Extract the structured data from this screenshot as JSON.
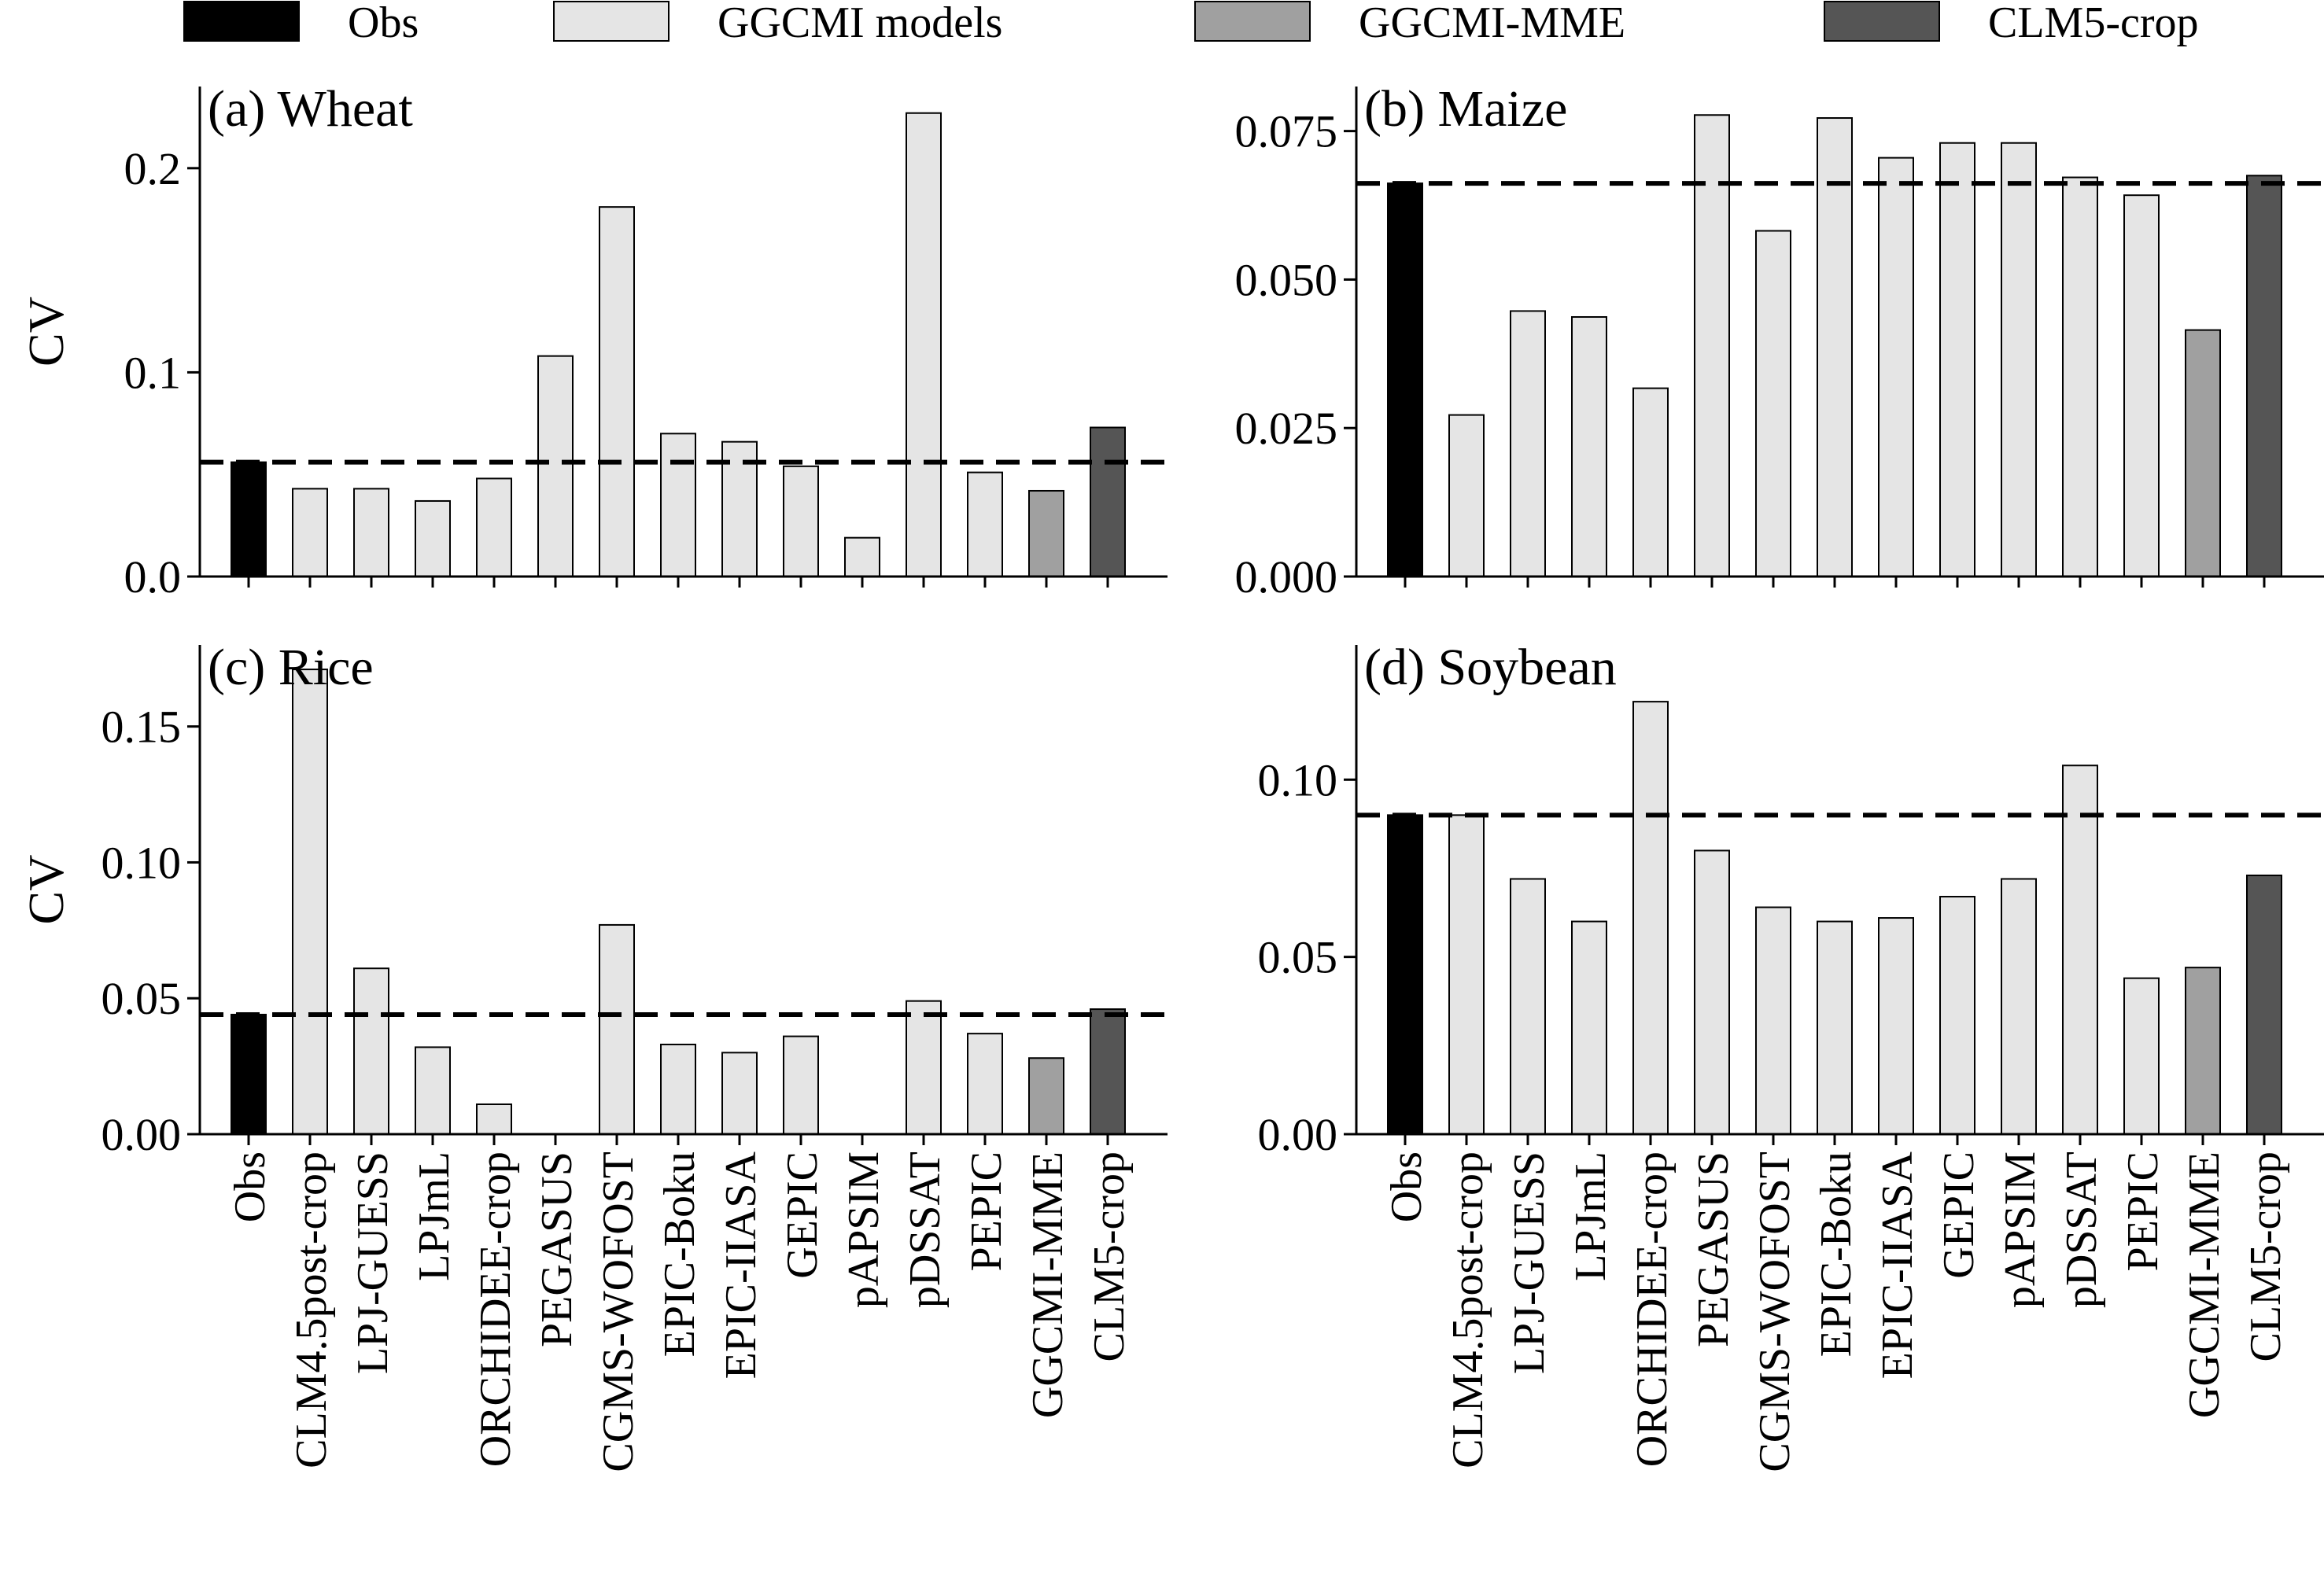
{
  "legend": [
    {
      "label": "Obs",
      "color": "#000000"
    },
    {
      "label": "GGCMI models",
      "color": "#e5e5e5"
    },
    {
      "label": "GGCMI-MME",
      "color": "#a0a0a0"
    },
    {
      "label": "CLM5-crop",
      "color": "#555555"
    }
  ],
  "chart_data": [
    {
      "type": "bar",
      "title": "(a) Wheat",
      "ylabel": "CV",
      "ylim": [
        0,
        0.24
      ],
      "yticks": [
        "0.0",
        "0.1",
        "0.2"
      ],
      "categories": [
        "Obs",
        "CLM4.5post-crop",
        "LPJ-GUESS",
        "LPJmL",
        "ORCHIDEE-crop",
        "PEGASUS",
        "CGMS-WOFOST",
        "EPIC-Boku",
        "EPIC-IIASA",
        "GEPIC",
        "pAPSIM",
        "pDSSAT",
        "PEPIC",
        "GGCMI-MME",
        "CLM5-crop"
      ],
      "values": [
        0.056,
        0.043,
        0.043,
        0.037,
        0.048,
        0.108,
        0.181,
        0.07,
        0.066,
        0.054,
        0.019,
        0.227,
        0.051,
        0.042,
        0.073
      ],
      "reference_line": 0.056,
      "show_xticklabels": false
    },
    {
      "type": "bar",
      "title": "(b) Maize",
      "ylabel": "",
      "ylim": [
        0,
        0.0825
      ],
      "yticks": [
        "0.000",
        "0.025",
        "0.050",
        "0.075"
      ],
      "categories": [
        "Obs",
        "CLM4.5post-crop",
        "LPJ-GUESS",
        "LPJmL",
        "ORCHIDEE-crop",
        "PEGASUS",
        "CGMS-WOFOST",
        "EPIC-Boku",
        "EPIC-IIASA",
        "GEPIC",
        "pAPSIM",
        "pDSSAT",
        "PEPIC",
        "GGCMI-MME",
        "CLM5-crop"
      ],
      "values": [
        0.0662,
        0.0272,
        0.0447,
        0.0437,
        0.0317,
        0.0777,
        0.0582,
        0.0772,
        0.0705,
        0.073,
        0.073,
        0.0672,
        0.0642,
        0.0415,
        0.0675
      ],
      "reference_line": 0.0662,
      "show_xticklabels": false
    },
    {
      "type": "bar",
      "title": "(c) Rice",
      "ylabel": "CV",
      "ylim": [
        0,
        0.18
      ],
      "yticks": [
        "0.00",
        "0.05",
        "0.10",
        "0.15"
      ],
      "categories": [
        "Obs",
        "CLM4.5post-crop",
        "LPJ-GUESS",
        "LPJmL",
        "ORCHIDEE-crop",
        "PEGASUS",
        "CGMS-WOFOST",
        "EPIC-Boku",
        "EPIC-IIASA",
        "GEPIC",
        "pAPSIM",
        "pDSSAT",
        "PEPIC",
        "GGCMI-MME",
        "CLM5-crop"
      ],
      "values": [
        0.044,
        0.171,
        0.061,
        0.032,
        0.011,
        0.0,
        0.077,
        0.033,
        0.03,
        0.036,
        0.0,
        0.049,
        0.037,
        0.028,
        0.046
      ],
      "reference_line": 0.044,
      "show_xticklabels": true
    },
    {
      "type": "bar",
      "title": "(d) Soybean",
      "ylabel": "",
      "ylim": [
        0,
        0.138
      ],
      "yticks": [
        "0.00",
        "0.05",
        "0.10"
      ],
      "categories": [
        "Obs",
        "CLM4.5post-crop",
        "LPJ-GUESS",
        "LPJmL",
        "ORCHIDEE-crop",
        "PEGASUS",
        "CGMS-WOFOST",
        "EPIC-Boku",
        "EPIC-IIASA",
        "GEPIC",
        "pAPSIM",
        "pDSSAT",
        "PEPIC",
        "GGCMI-MME",
        "CLM5-crop"
      ],
      "values": [
        0.09,
        0.09,
        0.072,
        0.06,
        0.122,
        0.08,
        0.064,
        0.06,
        0.061,
        0.067,
        0.072,
        0.104,
        0.044,
        0.047,
        0.073
      ],
      "reference_line": 0.09,
      "show_xticklabels": true
    }
  ]
}
